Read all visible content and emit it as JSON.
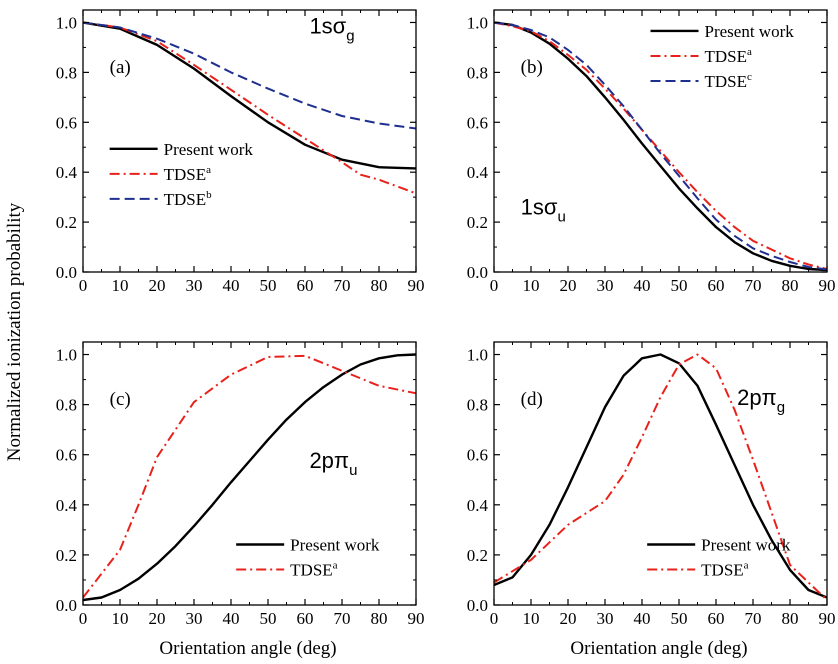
{
  "figure": {
    "ylabel": "Normalized ionization probability",
    "xlabel": "Orientation angle (deg)"
  },
  "colors": {
    "present": "#000000",
    "tdse_a": "#e8221b",
    "tdse_b": "#1f2f8f",
    "tdse_c": "#1f2f8f",
    "axis": "#000000"
  },
  "chart_data": [
    {
      "type": "line",
      "panel": "(a)",
      "state_base": "1s",
      "state_greek": "σ",
      "state_sub": "g",
      "xlim": [
        0,
        90
      ],
      "ylim": [
        0,
        1.05
      ],
      "xticks": [
        "0",
        "10",
        "20",
        "30",
        "40",
        "50",
        "60",
        "70",
        "80",
        "90"
      ],
      "yticks": [
        "0.0",
        "0.2",
        "0.4",
        "0.6",
        "0.8",
        "1.0"
      ],
      "legend_position": "middle-left",
      "series": [
        {
          "name": "Present work",
          "sup": "",
          "style": "solid",
          "color": "present",
          "x": [
            0,
            10,
            20,
            30,
            40,
            50,
            60,
            70,
            80,
            90
          ],
          "y": [
            1.0,
            0.975,
            0.91,
            0.815,
            0.705,
            0.6,
            0.51,
            0.45,
            0.42,
            0.415
          ]
        },
        {
          "name": "TDSE",
          "sup": "a",
          "style": "dashdot",
          "color": "tdse_a",
          "x": [
            0,
            10,
            20,
            30,
            40,
            50,
            60,
            70,
            75,
            80,
            90
          ],
          "y": [
            1.0,
            0.98,
            0.925,
            0.83,
            0.73,
            0.63,
            0.535,
            0.44,
            0.39,
            0.37,
            0.315
          ]
        },
        {
          "name": "TDSE",
          "sup": "b",
          "style": "dashed",
          "color": "tdse_b",
          "x": [
            0,
            10,
            20,
            30,
            40,
            50,
            60,
            70,
            80,
            90
          ],
          "y": [
            1.0,
            0.98,
            0.935,
            0.875,
            0.8,
            0.735,
            0.675,
            0.625,
            0.595,
            0.575
          ]
        }
      ]
    },
    {
      "type": "line",
      "panel": "(b)",
      "state_base": "1s",
      "state_greek": "σ",
      "state_sub": "u",
      "xlim": [
        0,
        90
      ],
      "ylim": [
        0,
        1.05
      ],
      "xticks": [
        "0",
        "10",
        "20",
        "30",
        "40",
        "50",
        "60",
        "70",
        "80",
        "90"
      ],
      "yticks": [
        "0.0",
        "0.2",
        "0.4",
        "0.6",
        "0.8",
        "1.0"
      ],
      "legend_position": "top-right",
      "series": [
        {
          "name": "Present work",
          "sup": "",
          "style": "solid",
          "color": "present",
          "x": [
            0,
            5,
            10,
            15,
            20,
            25,
            30,
            35,
            40,
            45,
            50,
            55,
            60,
            65,
            70,
            75,
            80,
            85,
            90
          ],
          "y": [
            1.0,
            0.99,
            0.96,
            0.915,
            0.855,
            0.785,
            0.7,
            0.61,
            0.515,
            0.425,
            0.335,
            0.255,
            0.18,
            0.12,
            0.075,
            0.045,
            0.025,
            0.012,
            0.008
          ]
        },
        {
          "name": "TDSE",
          "sup": "a",
          "style": "dashdot",
          "color": "tdse_a",
          "x": [
            0,
            5,
            10,
            15,
            20,
            25,
            30,
            35,
            40,
            45,
            50,
            55,
            60,
            65,
            70,
            75,
            80,
            85,
            90
          ],
          "y": [
            1.0,
            0.985,
            0.965,
            0.925,
            0.87,
            0.81,
            0.735,
            0.655,
            0.57,
            0.485,
            0.4,
            0.32,
            0.245,
            0.18,
            0.125,
            0.09,
            0.055,
            0.03,
            0.012
          ]
        },
        {
          "name": "TDSE",
          "sup": "c",
          "style": "dashed",
          "color": "tdse_c",
          "x": [
            0,
            5,
            10,
            15,
            20,
            25,
            30,
            35,
            40,
            45,
            50,
            55,
            60,
            65,
            70,
            75,
            80,
            85,
            90
          ],
          "y": [
            1.0,
            0.99,
            0.97,
            0.94,
            0.89,
            0.83,
            0.75,
            0.665,
            0.57,
            0.475,
            0.385,
            0.295,
            0.21,
            0.145,
            0.095,
            0.065,
            0.04,
            0.02,
            0.01
          ]
        }
      ]
    },
    {
      "type": "line",
      "panel": "(c)",
      "state_base": "2p",
      "state_greek": "π",
      "state_sub": "u",
      "xlim": [
        0,
        90
      ],
      "ylim": [
        0,
        1.05
      ],
      "xticks": [
        "0",
        "10",
        "20",
        "30",
        "40",
        "50",
        "60",
        "70",
        "80",
        "90"
      ],
      "yticks": [
        "0.0",
        "0.2",
        "0.4",
        "0.6",
        "0.8",
        "1.0"
      ],
      "legend_position": "bottom-right",
      "series": [
        {
          "name": "Present work",
          "sup": "",
          "style": "solid",
          "color": "present",
          "x": [
            0,
            5,
            10,
            15,
            20,
            25,
            30,
            35,
            40,
            45,
            50,
            55,
            60,
            65,
            70,
            75,
            80,
            85,
            90
          ],
          "y": [
            0.02,
            0.03,
            0.06,
            0.105,
            0.165,
            0.235,
            0.315,
            0.4,
            0.49,
            0.575,
            0.66,
            0.74,
            0.81,
            0.87,
            0.92,
            0.96,
            0.985,
            0.997,
            1.0
          ]
        },
        {
          "name": "TDSE",
          "sup": "a",
          "style": "dashdot",
          "color": "tdse_a",
          "x": [
            0,
            10,
            15,
            20,
            30,
            40,
            50,
            60,
            70,
            80,
            90
          ],
          "y": [
            0.03,
            0.22,
            0.4,
            0.59,
            0.81,
            0.92,
            0.99,
            0.995,
            0.935,
            0.875,
            0.845
          ]
        }
      ]
    },
    {
      "type": "line",
      "panel": "(d)",
      "state_base": "2p",
      "state_greek": "π",
      "state_sub": "g",
      "xlim": [
        0,
        90
      ],
      "ylim": [
        0,
        1.05
      ],
      "xticks": [
        "0",
        "10",
        "20",
        "30",
        "40",
        "50",
        "60",
        "70",
        "80",
        "90"
      ],
      "yticks": [
        "0.0",
        "0.2",
        "0.4",
        "0.6",
        "0.8",
        "1.0"
      ],
      "legend_position": "bottom-right",
      "series": [
        {
          "name": "Present work",
          "sup": "",
          "style": "solid",
          "color": "present",
          "x": [
            0,
            5,
            10,
            15,
            20,
            25,
            30,
            35,
            40,
            45,
            50,
            55,
            60,
            65,
            70,
            75,
            80,
            85,
            90
          ],
          "y": [
            0.08,
            0.11,
            0.2,
            0.32,
            0.47,
            0.63,
            0.79,
            0.915,
            0.985,
            1.0,
            0.965,
            0.875,
            0.72,
            0.56,
            0.4,
            0.26,
            0.14,
            0.06,
            0.03
          ]
        },
        {
          "name": "TDSE",
          "sup": "a",
          "style": "dashdot",
          "color": "tdse_a",
          "x": [
            0,
            10,
            20,
            30,
            35,
            40,
            45,
            50,
            55,
            60,
            65,
            70,
            80,
            90
          ],
          "y": [
            0.09,
            0.18,
            0.32,
            0.415,
            0.52,
            0.67,
            0.83,
            0.96,
            1.0,
            0.945,
            0.78,
            0.58,
            0.16,
            0.02
          ]
        }
      ]
    }
  ]
}
